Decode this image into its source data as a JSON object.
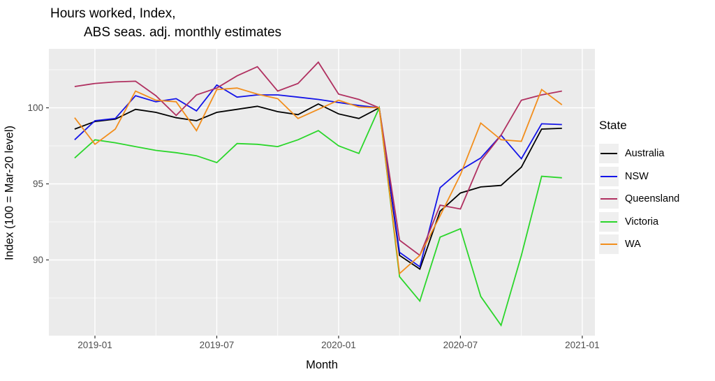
{
  "title": {
    "line1": "Hours worked, Index,",
    "line2": "ABS seas. adj. monthly estimates"
  },
  "axes": {
    "x_label": "Month",
    "y_label": "Index (100 = Mar-20 level)",
    "x_ticks": [
      "2019-01",
      "2019-07",
      "2020-01",
      "2020-07",
      "2021-01"
    ],
    "y_ticks": [
      "100",
      "95",
      "90"
    ]
  },
  "legend": {
    "title": "State"
  },
  "chart_data": {
    "type": "line",
    "title": "Hours worked, Index, ABS seas. adj. monthly estimates",
    "xlabel": "Month",
    "ylabel": "Index (100 = Mar-20 level)",
    "x": [
      "2018-12",
      "2019-01",
      "2019-02",
      "2019-03",
      "2019-04",
      "2019-05",
      "2019-06",
      "2019-07",
      "2019-08",
      "2019-09",
      "2019-10",
      "2019-11",
      "2019-12",
      "2020-01",
      "2020-02",
      "2020-03",
      "2020-04",
      "2020-05",
      "2020-06",
      "2020-07",
      "2020-08",
      "2020-09",
      "2020-10",
      "2020-11",
      "2020-12"
    ],
    "x_major_tick_labels": [
      "2019-01",
      "2019-07",
      "2020-01",
      "2020-07",
      "2021-01"
    ],
    "x_major_tick_month_index": [
      1,
      7,
      13,
      19,
      25
    ],
    "x_minor_tick_month_index": [
      4,
      10,
      16,
      22
    ],
    "y_major_ticks": [
      100,
      95,
      90
    ],
    "y_minor_ticks": [
      102.5,
      97.5,
      92.5,
      87.5
    ],
    "ylim": [
      85.0,
      103.9
    ],
    "grid": "white major + minor on gray panel",
    "legend_position": "right",
    "panel_background": "#ebebeb",
    "series": [
      {
        "name": "Australia",
        "color": "#000000",
        "values": [
          98.6,
          99.1,
          99.25,
          99.9,
          99.7,
          99.35,
          99.15,
          99.7,
          99.9,
          100.1,
          99.75,
          99.55,
          100.25,
          99.6,
          99.3,
          100,
          90.3,
          89.4,
          93.2,
          94.4,
          94.8,
          94.9,
          96.1,
          98.6,
          98.65
        ]
      },
      {
        "name": "NSW",
        "color": "#1414e8",
        "values": [
          97.9,
          99.15,
          99.3,
          100.8,
          100.4,
          100.6,
          99.8,
          101.5,
          100.7,
          100.85,
          100.85,
          100.7,
          100.55,
          100.35,
          100.15,
          100,
          90.5,
          89.55,
          94.75,
          95.9,
          96.7,
          98.2,
          96.65,
          98.95,
          98.9
        ]
      },
      {
        "name": "Queensland",
        "color": "#b03060",
        "values": [
          101.4,
          101.6,
          101.7,
          101.75,
          100.8,
          99.5,
          100.85,
          101.3,
          102.1,
          102.7,
          101.1,
          101.6,
          103.0,
          100.9,
          100.55,
          100,
          91.3,
          90.3,
          93.6,
          93.35,
          96.5,
          98.2,
          100.5,
          100.85,
          101.1
        ]
      },
      {
        "name": "Victoria",
        "color": "#2bd62b",
        "values": [
          96.7,
          97.9,
          97.7,
          97.45,
          97.2,
          97.05,
          96.85,
          96.4,
          97.65,
          97.6,
          97.45,
          97.9,
          98.5,
          97.5,
          97.0,
          100,
          88.9,
          87.3,
          91.5,
          92.05,
          87.6,
          85.7,
          90.3,
          95.5,
          95.4
        ]
      },
      {
        "name": "WA",
        "color": "#f28e1c",
        "values": [
          99.35,
          97.6,
          98.6,
          101.1,
          100.5,
          100.4,
          98.5,
          101.2,
          101.3,
          100.9,
          100.6,
          99.3,
          99.9,
          100.5,
          100.05,
          100,
          89.1,
          90.3,
          92.9,
          95.6,
          99.0,
          97.9,
          97.8,
          101.2,
          100.2
        ]
      }
    ]
  }
}
